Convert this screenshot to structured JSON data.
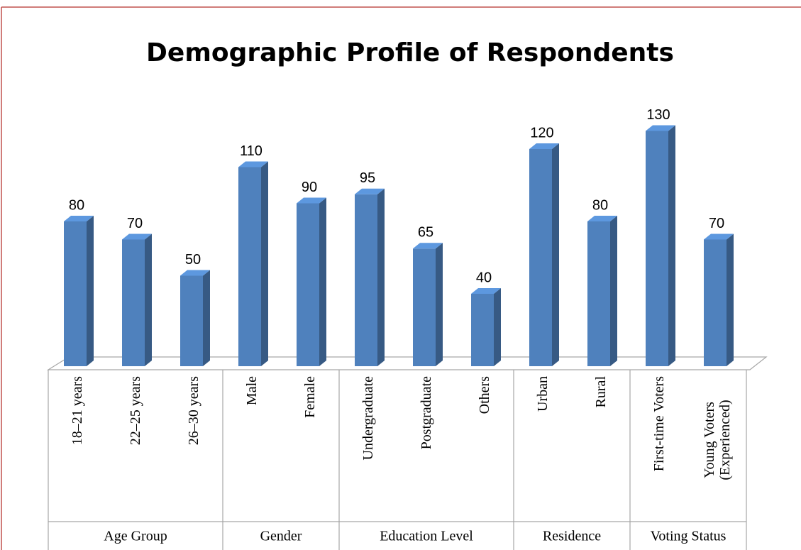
{
  "chart_data": {
    "type": "bar3d",
    "title": "Demographic Profile of Respondents",
    "groups": [
      {
        "name": "Age Group",
        "categories": [
          "18–21 years",
          "22–25 years",
          "26–30 years"
        ]
      },
      {
        "name": "Gender",
        "categories": [
          "Male",
          "Female"
        ]
      },
      {
        "name": "Education Level",
        "categories": [
          "Undergraduate",
          "Postgraduate",
          "Others"
        ]
      },
      {
        "name": "Residence",
        "categories": [
          "Urban",
          "Rural"
        ]
      },
      {
        "name": "Voting Status",
        "categories": [
          "First-time Voters",
          "Young Voters (Experienced)"
        ]
      }
    ],
    "values": [
      80,
      70,
      50,
      110,
      90,
      95,
      65,
      40,
      120,
      80,
      130,
      70
    ],
    "color": "#4f81bd"
  }
}
